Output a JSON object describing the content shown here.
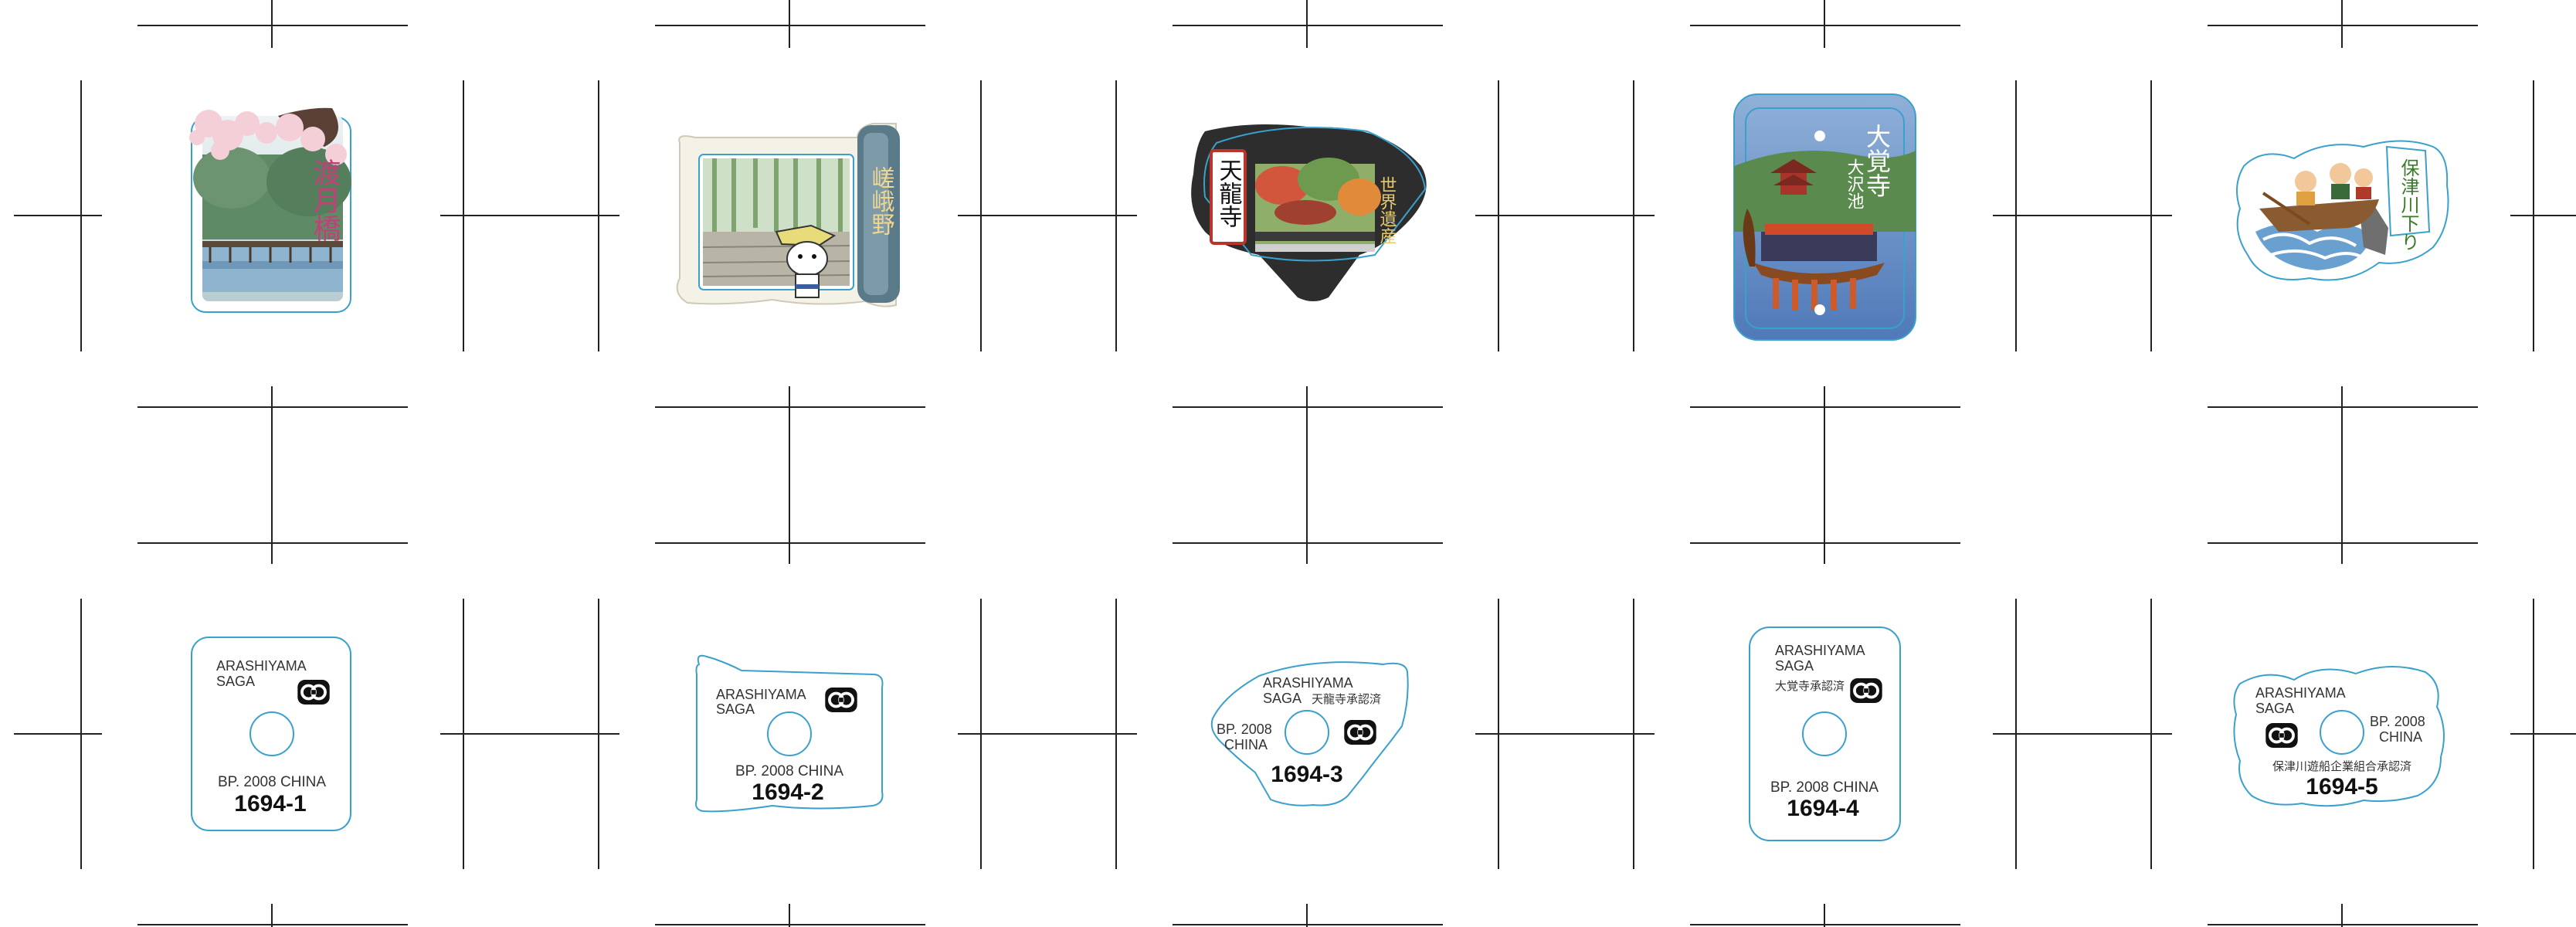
{
  "stickers": [
    {
      "code": "1694-1",
      "front_title": "渡月橋",
      "back": {
        "line1": "ARASHIYAMA",
        "line2": "SAGA",
        "approval": "",
        "origin": "BP. 2008 CHINA"
      }
    },
    {
      "code": "1694-2",
      "front_title": "嵯峨野",
      "back": {
        "line1": "ARASHIYAMA",
        "line2": "SAGA",
        "approval": "",
        "origin": "BP. 2008 CHINA"
      }
    },
    {
      "code": "1694-3",
      "front_title": "天龍寺",
      "front_subtitle": "世界遺産",
      "back": {
        "line1": "ARASHIYAMA",
        "line2": "SAGA",
        "approval": "天龍寺承認済",
        "origin_a": "BP. 2008",
        "origin_b": "CHINA"
      }
    },
    {
      "code": "1694-4",
      "front_title": "大覚寺",
      "front_subtitle": "大沢池",
      "back": {
        "line1": "ARASHIYAMA",
        "line2": "SAGA",
        "approval": "大覚寺承認済",
        "origin": "BP. 2008 CHINA"
      }
    },
    {
      "code": "1694-5",
      "front_title": "保津川下り",
      "back": {
        "line1": "ARASHIYAMA",
        "line2": "SAGA",
        "approval": "保津川遊船企業組合承認済",
        "origin_a": "BP. 2008",
        "origin_b": "CHINA"
      }
    }
  ],
  "colors": {
    "cut_line": "#3aa0cc",
    "crop_mark": "#222222",
    "logo": "#111111"
  }
}
